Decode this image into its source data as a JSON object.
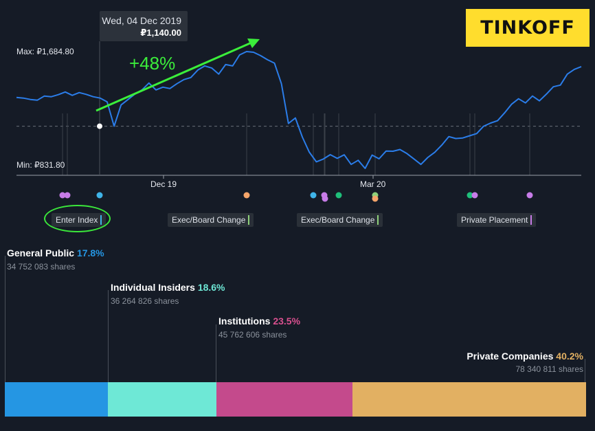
{
  "brand": {
    "logo_text": "TINKOFF"
  },
  "tooltip": {
    "date": "Wed, 04 Dec 2019",
    "price": "₽1,140.00"
  },
  "annotation": {
    "gain_text": "+48%",
    "arrow_color": "#3bee3b"
  },
  "axis": {
    "max_label": "Max: ₽1,684.80",
    "min_label": "Min: ₽831.80",
    "x_ticks": [
      "Dec 19",
      "Mar 20"
    ]
  },
  "events": [
    {
      "label": "Enter Index",
      "color": "#3fb4e8"
    },
    {
      "label": "Exec/Board Change",
      "color": "#8ed07a"
    },
    {
      "label": "Exec/Board Change",
      "color": "#8ed07a"
    },
    {
      "label": "Private Placement",
      "color": "#c77ce8"
    }
  ],
  "ownership": [
    {
      "name": "General Public",
      "pct": "17.8%",
      "shares": "34 752 083 shares",
      "color": "#2596e3",
      "pct_value": 17.8
    },
    {
      "name": "Individual Insiders",
      "pct": "18.6%",
      "shares": "36 264 826 shares",
      "color": "#6ee8d6",
      "pct_value": 18.6
    },
    {
      "name": "Institutions",
      "pct": "23.5%",
      "shares": "45 762 606 shares",
      "color": "#c44a8c",
      "pct_value": 23.5
    },
    {
      "name": "Private Companies",
      "pct": "40.2%",
      "shares": "78 340 811 shares",
      "color": "#e2b062",
      "pct_value": 40.2
    }
  ],
  "chart_data": [
    {
      "type": "line",
      "series": [
        {
          "values": [
            1350,
            1345,
            1335,
            1330,
            1360,
            1355,
            1370,
            1390,
            1365,
            1385,
            1372,
            1355,
            1345,
            1318,
            1140,
            1295,
            1335,
            1375,
            1405,
            1455,
            1405,
            1425,
            1415,
            1450,
            1480,
            1495,
            1550,
            1580,
            1565,
            1520,
            1590,
            1580,
            1660,
            1684.8,
            1680,
            1655,
            1625,
            1600,
            1450,
            1160,
            1200,
            1060,
            950,
            880,
            900,
            932,
            905,
            931,
            861,
            891,
            831.8,
            929,
            902,
            958,
            957,
            970,
            940,
            901,
            861,
            912,
            950,
            1002,
            1064,
            1050,
            1054,
            1070,
            1086,
            1140,
            1163,
            1180,
            1237,
            1300,
            1340,
            1310,
            1360,
            1325,
            1374,
            1428,
            1440,
            1520,
            1555,
            1575
          ]
        }
      ],
      "ylim": [
        831.8,
        1684.8
      ],
      "x_ticks": [
        "Dec 19",
        "Mar 20"
      ],
      "reference_point": {
        "date": "Wed, 04 Dec 2019",
        "value": 1140.0
      }
    },
    {
      "type": "bar",
      "stacked": true,
      "categories": [
        "General Public",
        "Individual Insiders",
        "Institutions",
        "Private Companies"
      ],
      "values": [
        17.8,
        18.6,
        23.5,
        40.2
      ]
    }
  ]
}
